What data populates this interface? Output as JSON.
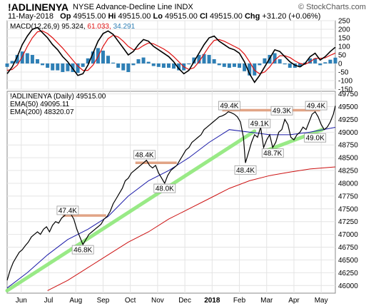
{
  "header": {
    "symbol": "!ADLINENYA",
    "name": "NYSE Advance-Decline Line",
    "index": "INDX",
    "brand": "© StockCharts.com",
    "date": "11-May-2018",
    "open_label": "Op",
    "open": "49515.00",
    "high_label": "Hi",
    "high": "49515.00",
    "low_label": "Lo",
    "low": "49515.00",
    "close_label": "Cl",
    "close": "49515.00",
    "change_label": "Chg",
    "change": "+31.20 (+0.06%)"
  },
  "chart_data": [
    {
      "type": "line",
      "panel": "macd",
      "legend": {
        "prefix": "MACD(12,26,9)",
        "macd_value": "95.324",
        "signal_value": "61.033",
        "hist_value": "34.291"
      },
      "colors": {
        "macd": "#000000",
        "signal": "#e01010",
        "histogram": "#2e7fb5"
      },
      "ylim": [
        -150,
        250
      ],
      "yticks": [
        "250",
        "200",
        "150",
        "100",
        "50",
        "0",
        "-50",
        "-100",
        "-150"
      ],
      "ytick_values": [
        250,
        200,
        150,
        100,
        50,
        0,
        -50,
        -100,
        -150
      ],
      "macd": [
        [
          0,
          -60
        ],
        [
          5,
          -20
        ],
        [
          10,
          40
        ],
        [
          15,
          110
        ],
        [
          20,
          160
        ],
        [
          25,
          200
        ],
        [
          30,
          210
        ],
        [
          35,
          180
        ],
        [
          40,
          150
        ],
        [
          45,
          110
        ],
        [
          50,
          80
        ],
        [
          55,
          40
        ],
        [
          60,
          10
        ],
        [
          65,
          -30
        ],
        [
          70,
          -70
        ],
        [
          75,
          -60
        ],
        [
          80,
          -10
        ],
        [
          85,
          60
        ],
        [
          90,
          130
        ],
        [
          95,
          175
        ],
        [
          100,
          190
        ],
        [
          105,
          170
        ],
        [
          110,
          130
        ],
        [
          115,
          90
        ],
        [
          120,
          50
        ],
        [
          125,
          70
        ],
        [
          130,
          110
        ],
        [
          135,
          140
        ],
        [
          140,
          130
        ],
        [
          145,
          100
        ],
        [
          150,
          80
        ],
        [
          155,
          60
        ],
        [
          160,
          40
        ],
        [
          165,
          10
        ],
        [
          170,
          -30
        ],
        [
          175,
          -60
        ],
        [
          180,
          -40
        ],
        [
          185,
          10
        ],
        [
          190,
          60
        ],
        [
          195,
          110
        ],
        [
          200,
          150
        ],
        [
          205,
          160
        ],
        [
          210,
          130
        ],
        [
          215,
          110
        ],
        [
          220,
          90
        ],
        [
          225,
          80
        ],
        [
          230,
          60
        ],
        [
          235,
          10
        ],
        [
          240,
          -60
        ],
        [
          245,
          -110
        ],
        [
          250,
          -70
        ],
        [
          255,
          -20
        ],
        [
          260,
          30
        ],
        [
          265,
          80
        ],
        [
          270,
          70
        ],
        [
          275,
          40
        ],
        [
          280,
          10
        ],
        [
          285,
          -10
        ],
        [
          290,
          -20
        ],
        [
          295,
          0
        ],
        [
          300,
          40
        ],
        [
          305,
          60
        ],
        [
          310,
          20
        ],
        [
          315,
          40
        ],
        [
          320,
          70
        ],
        [
          325,
          95
        ]
      ],
      "signal": [
        [
          0,
          -40
        ],
        [
          5,
          -35
        ],
        [
          10,
          -10
        ],
        [
          15,
          40
        ],
        [
          20,
          100
        ],
        [
          25,
          150
        ],
        [
          30,
          185
        ],
        [
          35,
          190
        ],
        [
          40,
          175
        ],
        [
          45,
          150
        ],
        [
          50,
          120
        ],
        [
          55,
          90
        ],
        [
          60,
          55
        ],
        [
          65,
          20
        ],
        [
          70,
          -15
        ],
        [
          75,
          -40
        ],
        [
          80,
          -40
        ],
        [
          85,
          -10
        ],
        [
          90,
          40
        ],
        [
          95,
          100
        ],
        [
          100,
          145
        ],
        [
          105,
          165
        ],
        [
          110,
          155
        ],
        [
          115,
          130
        ],
        [
          120,
          100
        ],
        [
          125,
          80
        ],
        [
          130,
          85
        ],
        [
          135,
          105
        ],
        [
          140,
          120
        ],
        [
          145,
          115
        ],
        [
          150,
          100
        ],
        [
          155,
          85
        ],
        [
          160,
          65
        ],
        [
          165,
          40
        ],
        [
          170,
          10
        ],
        [
          175,
          -20
        ],
        [
          180,
          -35
        ],
        [
          185,
          -25
        ],
        [
          190,
          10
        ],
        [
          195,
          55
        ],
        [
          200,
          100
        ],
        [
          205,
          135
        ],
        [
          210,
          140
        ],
        [
          215,
          130
        ],
        [
          220,
          115
        ],
        [
          225,
          100
        ],
        [
          230,
          85
        ],
        [
          235,
          55
        ],
        [
          240,
          10
        ],
        [
          245,
          -40
        ],
        [
          250,
          -60
        ],
        [
          255,
          -50
        ],
        [
          260,
          -20
        ],
        [
          265,
          20
        ],
        [
          270,
          45
        ],
        [
          275,
          45
        ],
        [
          280,
          35
        ],
        [
          285,
          15
        ],
        [
          290,
          0
        ],
        [
          295,
          -5
        ],
        [
          300,
          10
        ],
        [
          305,
          30
        ],
        [
          310,
          30
        ],
        [
          315,
          33
        ],
        [
          320,
          48
        ],
        [
          325,
          61
        ]
      ],
      "months": [
        "Jun",
        "Jul",
        "Aug",
        "Sep",
        "Oct",
        "Nov",
        "Dec",
        "2018",
        "Feb",
        "Mar",
        "Apr",
        "May"
      ],
      "month_x": [
        14,
        41,
        68,
        95,
        122,
        149,
        176,
        203,
        230,
        257,
        284,
        311
      ]
    },
    {
      "type": "line",
      "panel": "price",
      "legend": [
        {
          "label": "!ADLINENYA (Daily)",
          "value": "49515.00"
        },
        {
          "label": "EMA(50)",
          "value": "49095.11"
        },
        {
          "label": "EMA(200)",
          "value": "48320.07"
        }
      ],
      "colors": {
        "price": "#000000",
        "ema50": "#1a1aa8",
        "ema200": "#cc1010",
        "trend": "#8ee87a",
        "resistance": "#e0a080"
      },
      "ylim": [
        45850,
        49800
      ],
      "yticks": [
        "49750",
        "49500",
        "49250",
        "49000",
        "48750",
        "48500",
        "48250",
        "48000",
        "47750",
        "47500",
        "47250",
        "47000",
        "46750",
        "46500",
        "46250",
        "46000"
      ],
      "ytick_values": [
        49750,
        49500,
        49250,
        49000,
        48750,
        48500,
        48250,
        48000,
        47750,
        47500,
        47250,
        47000,
        46750,
        46500,
        46250,
        46000
      ],
      "annotations": [
        {
          "text": "47.4K",
          "x": 60,
          "y": 47470
        },
        {
          "text": "46.8K",
          "x": 75,
          "y": 46700
        },
        {
          "text": "48.4K",
          "x": 136,
          "y": 48560
        },
        {
          "text": "48.0K",
          "x": 156,
          "y": 47900
        },
        {
          "text": "49.4K",
          "x": 220,
          "y": 49520
        },
        {
          "text": "49.1K",
          "x": 250,
          "y": 49170
        },
        {
          "text": "49.3K",
          "x": 272,
          "y": 49420
        },
        {
          "text": "49.4K",
          "x": 306,
          "y": 49520
        },
        {
          "text": "48.4K",
          "x": 236,
          "y": 48260
        },
        {
          "text": "48.7K",
          "x": 263,
          "y": 48590
        },
        {
          "text": "49.0K",
          "x": 305,
          "y": 48890
        }
      ],
      "resistance_lines": [
        {
          "x0": 55,
          "x1": 98,
          "y": 47370
        },
        {
          "x0": 127,
          "x1": 168,
          "y": 48400
        },
        {
          "x0": 213,
          "x1": 310,
          "y": 49430
        }
      ],
      "trend_lines": [
        {
          "x0": 0,
          "y0": 45900,
          "x1": 245,
          "y1": 49020
        },
        {
          "x0": 258,
          "y0": 48650,
          "x1": 312,
          "y1": 49050
        }
      ],
      "price": [
        [
          0,
          46100
        ],
        [
          3,
          46300
        ],
        [
          6,
          46450
        ],
        [
          9,
          46550
        ],
        [
          12,
          46650
        ],
        [
          15,
          46700
        ],
        [
          18,
          46780
        ],
        [
          21,
          46850
        ],
        [
          24,
          46950
        ],
        [
          27,
          47000
        ],
        [
          30,
          47050
        ],
        [
          33,
          47000
        ],
        [
          36,
          47100
        ],
        [
          39,
          47150
        ],
        [
          42,
          47050
        ],
        [
          45,
          47180
        ],
        [
          48,
          47250
        ],
        [
          51,
          47220
        ],
        [
          54,
          47320
        ],
        [
          57,
          47370
        ],
        [
          60,
          47450
        ],
        [
          63,
          47400
        ],
        [
          66,
          47300
        ],
        [
          69,
          47100
        ],
        [
          72,
          46950
        ],
        [
          75,
          46800
        ],
        [
          78,
          46900
        ],
        [
          81,
          47000
        ],
        [
          84,
          47050
        ],
        [
          87,
          47100
        ],
        [
          90,
          47150
        ],
        [
          93,
          47200
        ],
        [
          96,
          47300
        ],
        [
          99,
          47350
        ],
        [
          102,
          47450
        ],
        [
          105,
          47600
        ],
        [
          108,
          47700
        ],
        [
          111,
          47800
        ],
        [
          114,
          47900
        ],
        [
          117,
          48050
        ],
        [
          120,
          48100
        ],
        [
          123,
          48200
        ],
        [
          126,
          48250
        ],
        [
          129,
          48300
        ],
        [
          132,
          48350
        ],
        [
          135,
          48400
        ],
        [
          138,
          48450
        ],
        [
          141,
          48350
        ],
        [
          144,
          48300
        ],
        [
          147,
          48350
        ],
        [
          150,
          48200
        ],
        [
          153,
          48100
        ],
        [
          156,
          48000
        ],
        [
          159,
          48150
        ],
        [
          162,
          48250
        ],
        [
          165,
          48300
        ],
        [
          168,
          48350
        ],
        [
          171,
          48450
        ],
        [
          174,
          48550
        ],
        [
          177,
          48650
        ],
        [
          180,
          48700
        ],
        [
          183,
          48800
        ],
        [
          186,
          48850
        ],
        [
          189,
          48900
        ],
        [
          192,
          48950
        ],
        [
          195,
          49050
        ],
        [
          198,
          49100
        ],
        [
          201,
          49150
        ],
        [
          204,
          49200
        ],
        [
          207,
          49250
        ],
        [
          210,
          49300
        ],
        [
          213,
          49320
        ],
        [
          216,
          49350
        ],
        [
          219,
          49400
        ],
        [
          222,
          49380
        ],
        [
          225,
          49350
        ],
        [
          228,
          49300
        ],
        [
          231,
          49200
        ],
        [
          234,
          48900
        ],
        [
          236,
          48400
        ],
        [
          239,
          48600
        ],
        [
          242,
          48800
        ],
        [
          245,
          48950
        ],
        [
          248,
          48900
        ],
        [
          251,
          49100
        ],
        [
          254,
          48700
        ],
        [
          257,
          48850
        ],
        [
          260,
          48950
        ],
        [
          263,
          48700
        ],
        [
          266,
          48800
        ],
        [
          269,
          49000
        ],
        [
          272,
          49050
        ],
        [
          275,
          49250
        ],
        [
          278,
          49150
        ],
        [
          281,
          48900
        ],
        [
          284,
          48850
        ],
        [
          287,
          48950
        ],
        [
          290,
          49000
        ],
        [
          293,
          49100
        ],
        [
          296,
          49050
        ],
        [
          299,
          49200
        ],
        [
          302,
          49350
        ],
        [
          305,
          49400
        ],
        [
          308,
          49300
        ],
        [
          311,
          49150
        ],
        [
          314,
          49050
        ],
        [
          317,
          49100
        ],
        [
          320,
          49200
        ],
        [
          323,
          49350
        ],
        [
          325,
          49515
        ]
      ],
      "ema50": [
        [
          0,
          45950
        ],
        [
          20,
          46250
        ],
        [
          40,
          46600
        ],
        [
          60,
          46900
        ],
        [
          80,
          47100
        ],
        [
          100,
          47350
        ],
        [
          120,
          47750
        ],
        [
          140,
          48050
        ],
        [
          160,
          48250
        ],
        [
          180,
          48500
        ],
        [
          200,
          48800
        ],
        [
          220,
          49050
        ],
        [
          240,
          49000
        ],
        [
          260,
          48950
        ],
        [
          280,
          48950
        ],
        [
          300,
          49000
        ],
        [
          325,
          49095
        ]
      ],
      "ema200": [
        [
          40,
          45900
        ],
        [
          60,
          46100
        ],
        [
          80,
          46350
        ],
        [
          100,
          46600
        ],
        [
          120,
          46850
        ],
        [
          140,
          47050
        ],
        [
          160,
          47300
        ],
        [
          180,
          47500
        ],
        [
          200,
          47700
        ],
        [
          220,
          47900
        ],
        [
          240,
          48050
        ],
        [
          260,
          48150
        ],
        [
          280,
          48220
        ],
        [
          300,
          48280
        ],
        [
          325,
          48320
        ]
      ],
      "months": [
        "Jun",
        "Jul",
        "Aug",
        "Sep",
        "Oct",
        "Nov",
        "Dec",
        "2018",
        "Feb",
        "Mar",
        "Apr",
        "May"
      ],
      "month_x": [
        14,
        41,
        68,
        95,
        122,
        149,
        176,
        203,
        230,
        257,
        284,
        311
      ]
    }
  ]
}
